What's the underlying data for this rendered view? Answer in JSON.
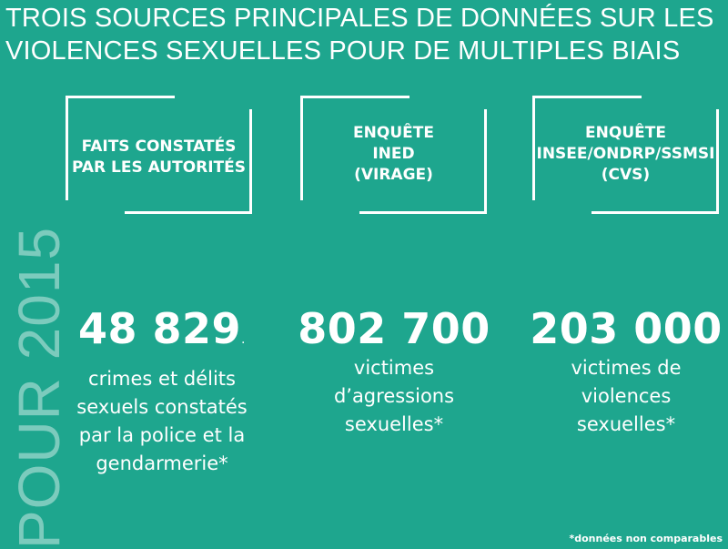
{
  "title": {
    "line1": "TROIS SOURCES PRINCIPALES DE DONNÉES SUR LES",
    "line2": "VIOLENCES SEXUELLES POUR DE MULTIPLES BIAIS"
  },
  "year_label": "POUR 2015",
  "sources": [
    {
      "lines": [
        "FAITS CONSTATÉS",
        "PAR LES AUTORITÉS"
      ]
    },
    {
      "lines": [
        "ENQUÊTE",
        "INED",
        "(VIRAGE)"
      ]
    },
    {
      "lines": [
        "ENQUÊTE",
        "INSEE/ONDRP/SSMSI",
        "(CVS)"
      ]
    }
  ],
  "stats": [
    {
      "value": "48 829",
      "value_suffix": ".",
      "desc": [
        "crimes et délits",
        "sexuels constatés",
        "par la police et la",
        "gendarmerie*"
      ]
    },
    {
      "value": "802 700",
      "desc": [
        "victimes",
        "d’agressions",
        "sexuelles*"
      ]
    },
    {
      "value": "203 000",
      "desc": [
        "victimes de",
        "violences",
        "sexuelles*"
      ]
    }
  ],
  "footnote": "*données non comparables",
  "colors": {
    "background": "#1ea68e",
    "text": "#ffffff"
  }
}
